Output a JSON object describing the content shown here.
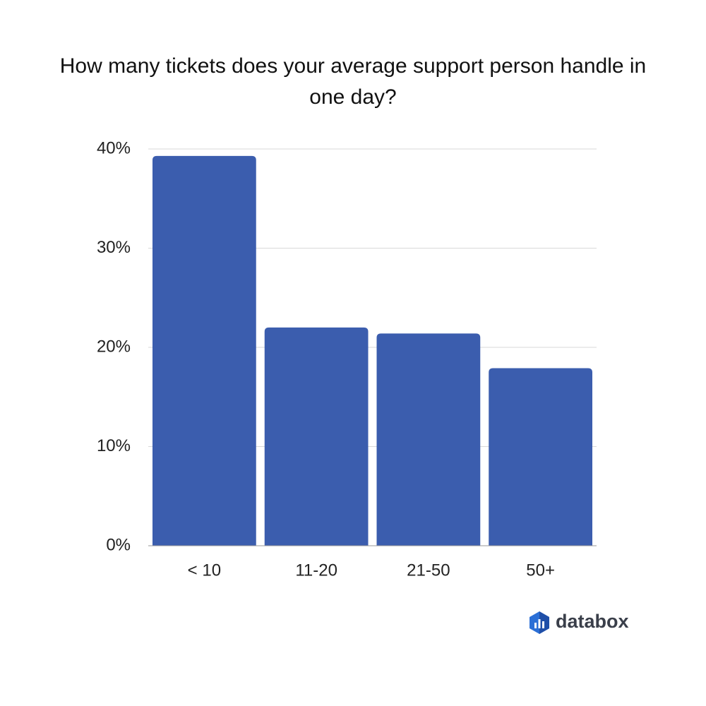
{
  "chart_data": {
    "type": "bar",
    "title": "How many tickets does your average support person handle in one day?",
    "categories": [
      "< 10",
      "11-20",
      "21-50",
      "50+"
    ],
    "values": [
      39.3,
      22.0,
      21.4,
      17.9
    ],
    "color": "#3b5dae",
    "ylim": [
      0,
      40
    ],
    "yticks": [
      {
        "value": 0,
        "label": "0%"
      },
      {
        "value": 10,
        "label": "10%"
      },
      {
        "value": 20,
        "label": "20%"
      },
      {
        "value": 30,
        "label": "30%"
      },
      {
        "value": 40,
        "label": "40%"
      }
    ],
    "grid": true,
    "brand": "databox"
  }
}
